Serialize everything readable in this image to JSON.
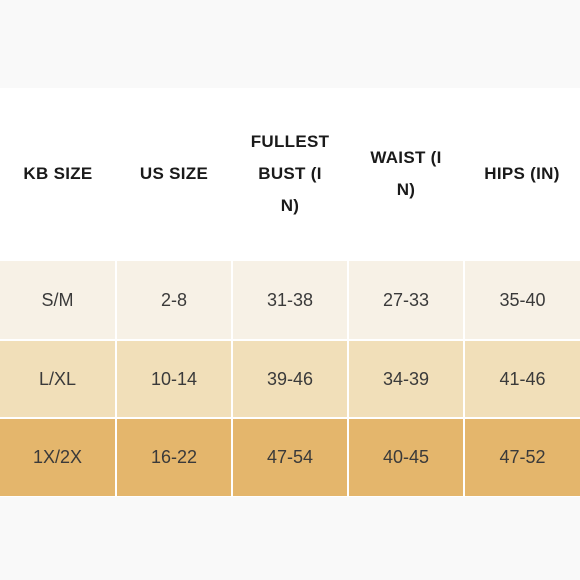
{
  "colors": {
    "row_1_bg": "#f7f1e6",
    "row_2_bg": "#f1dfb9",
    "row_3_bg": "#e4b66c",
    "header_text": "#1a1a1a",
    "cell_text": "#3a3a3a"
  },
  "table": {
    "headers": [
      "KB SIZE",
      "US SIZE",
      "FULLEST BUST (IN)",
      "WAIST (IN)",
      "HIPS (IN)"
    ],
    "rows": [
      [
        "S/M",
        "2-8",
        "31-38",
        "27-33",
        "35-40"
      ],
      [
        "L/XL",
        "10-14",
        "39-46",
        "34-39",
        "41-46"
      ],
      [
        "1X/2X",
        "16-22",
        "47-54",
        "40-45",
        "47-52"
      ]
    ]
  }
}
